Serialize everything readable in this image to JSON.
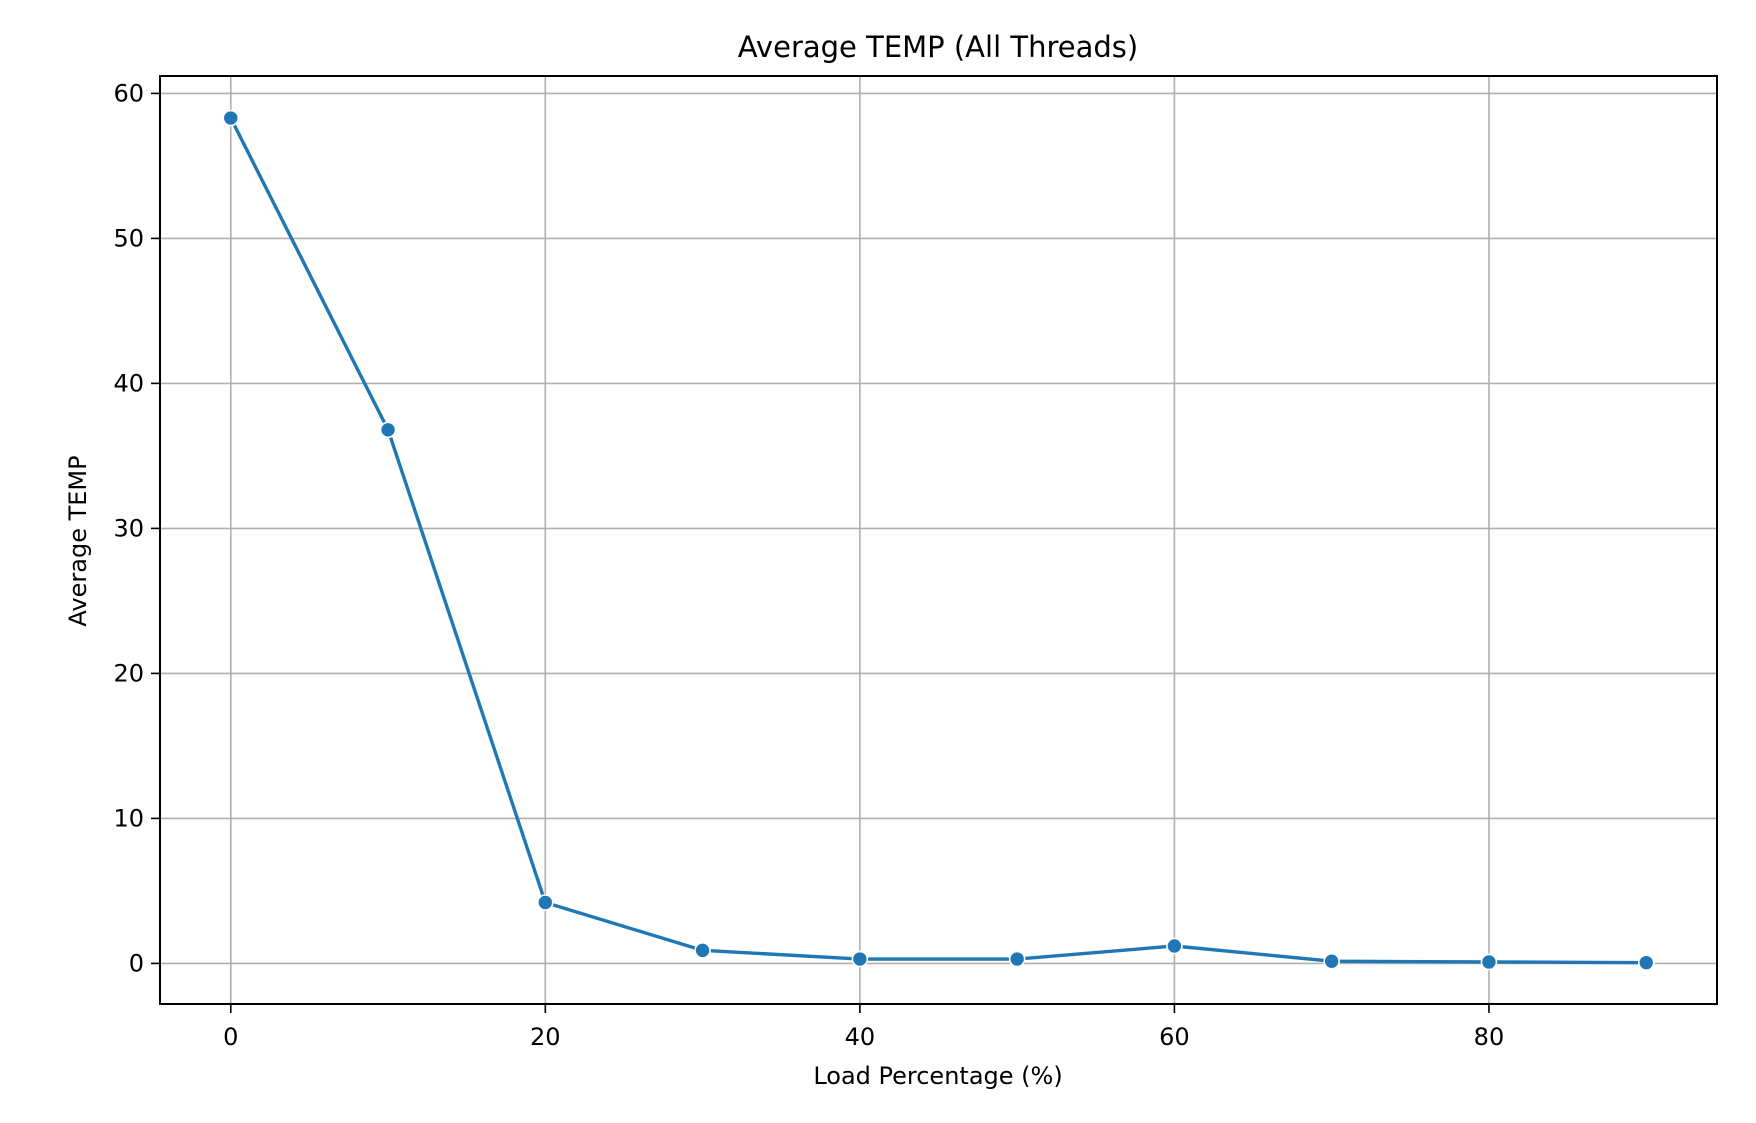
{
  "chart_data": {
    "type": "line",
    "title": "Average TEMP (All Threads)",
    "xlabel": "Load Percentage (%)",
    "ylabel": "Average TEMP",
    "xlim": [
      -4.5,
      94.5
    ],
    "ylim": [
      -2.8,
      61.2
    ],
    "x_ticks": [
      0,
      20,
      40,
      60,
      80
    ],
    "y_ticks": [
      0,
      10,
      20,
      30,
      40,
      50,
      60
    ],
    "x_tick_labels": [
      "0",
      "20",
      "40",
      "60",
      "80"
    ],
    "y_tick_labels": [
      "0",
      "10",
      "20",
      "30",
      "40",
      "50",
      "60"
    ],
    "grid": true,
    "legend": "none",
    "colors": {
      "line": "#1f77b4",
      "grid": "#b0b0b0",
      "marker_edge": "#ffffff"
    },
    "series": [
      {
        "x": [
          0,
          10,
          20,
          30,
          40,
          50,
          60,
          70,
          80,
          90
        ],
        "values": [
          58.3,
          36.8,
          4.2,
          0.9,
          0.3,
          0.3,
          1.2,
          0.15,
          0.1,
          0.05
        ]
      }
    ]
  }
}
